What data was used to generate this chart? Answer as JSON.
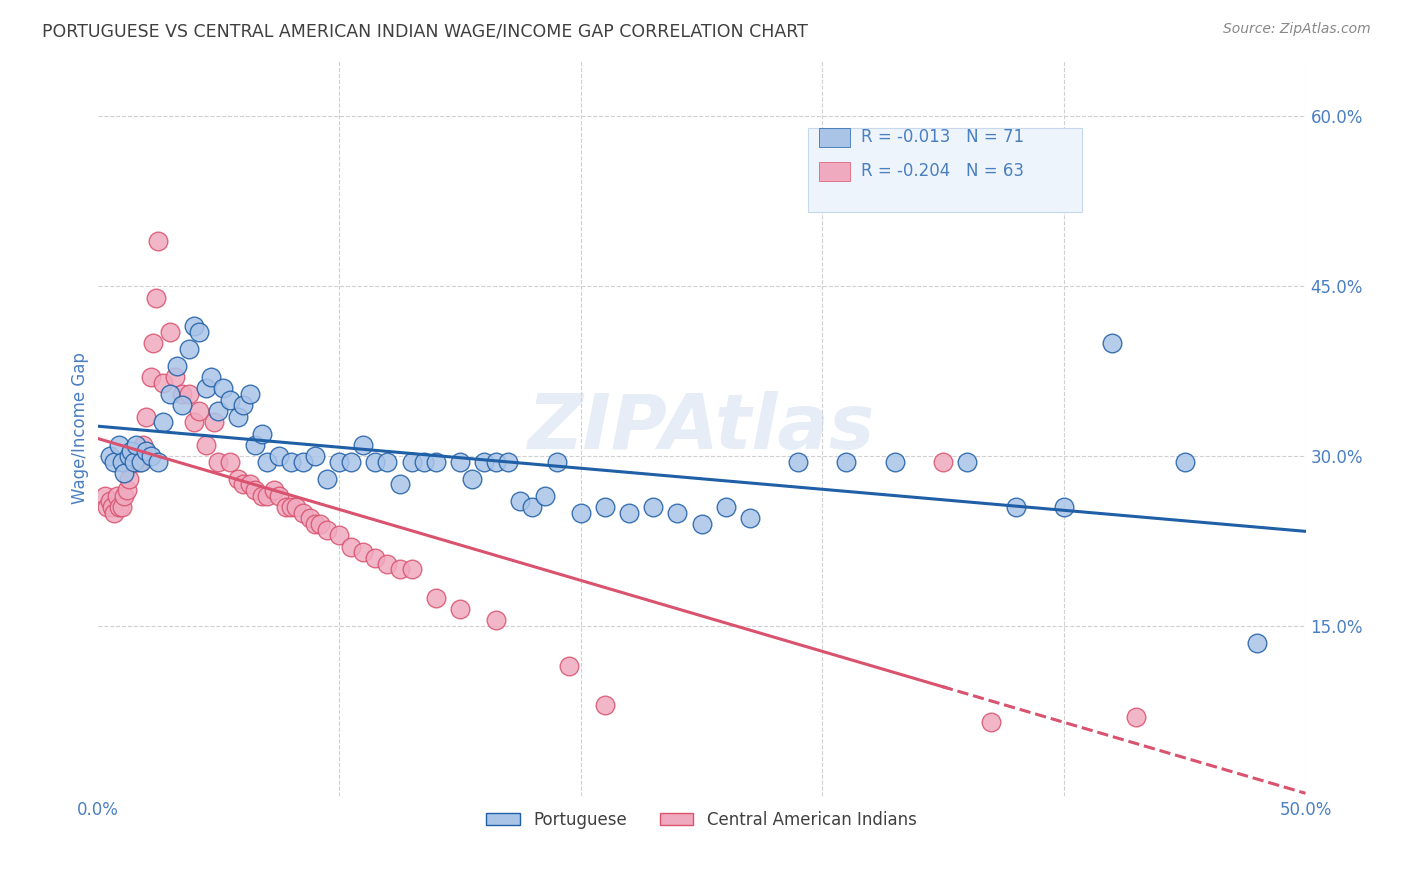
{
  "title": "PORTUGUESE VS CENTRAL AMERICAN INDIAN WAGE/INCOME GAP CORRELATION CHART",
  "source": "Source: ZipAtlas.com",
  "ylabel": "Wage/Income Gap",
  "xlim": [
    0.0,
    0.5
  ],
  "ylim": [
    0.0,
    0.65
  ],
  "yticks": [
    0.15,
    0.3,
    0.45,
    0.6
  ],
  "ytick_labels": [
    "15.0%",
    "30.0%",
    "45.0%",
    "60.0%"
  ],
  "xticks": [
    0.0,
    0.1,
    0.2,
    0.3,
    0.4,
    0.5
  ],
  "xtick_labels": [
    "0.0%",
    "",
    "",
    "",
    "",
    "50.0%"
  ],
  "legend_entries": [
    {
      "label": "Portuguese",
      "color": "#aac4e8",
      "R": "-0.013",
      "N": "71"
    },
    {
      "label": "Central American Indians",
      "color": "#f0aac0",
      "R": "-0.204",
      "N": "63"
    }
  ],
  "blue_scatter": [
    [
      0.005,
      0.3
    ],
    [
      0.007,
      0.295
    ],
    [
      0.009,
      0.31
    ],
    [
      0.01,
      0.295
    ],
    [
      0.011,
      0.285
    ],
    [
      0.013,
      0.3
    ],
    [
      0.014,
      0.305
    ],
    [
      0.015,
      0.295
    ],
    [
      0.016,
      0.31
    ],
    [
      0.018,
      0.295
    ],
    [
      0.02,
      0.305
    ],
    [
      0.022,
      0.3
    ],
    [
      0.025,
      0.295
    ],
    [
      0.027,
      0.33
    ],
    [
      0.03,
      0.355
    ],
    [
      0.033,
      0.38
    ],
    [
      0.035,
      0.345
    ],
    [
      0.038,
      0.395
    ],
    [
      0.04,
      0.415
    ],
    [
      0.042,
      0.41
    ],
    [
      0.045,
      0.36
    ],
    [
      0.047,
      0.37
    ],
    [
      0.05,
      0.34
    ],
    [
      0.052,
      0.36
    ],
    [
      0.055,
      0.35
    ],
    [
      0.058,
      0.335
    ],
    [
      0.06,
      0.345
    ],
    [
      0.063,
      0.355
    ],
    [
      0.065,
      0.31
    ],
    [
      0.068,
      0.32
    ],
    [
      0.07,
      0.295
    ],
    [
      0.075,
      0.3
    ],
    [
      0.08,
      0.295
    ],
    [
      0.085,
      0.295
    ],
    [
      0.09,
      0.3
    ],
    [
      0.095,
      0.28
    ],
    [
      0.1,
      0.295
    ],
    [
      0.105,
      0.295
    ],
    [
      0.11,
      0.31
    ],
    [
      0.115,
      0.295
    ],
    [
      0.12,
      0.295
    ],
    [
      0.125,
      0.275
    ],
    [
      0.13,
      0.295
    ],
    [
      0.135,
      0.295
    ],
    [
      0.14,
      0.295
    ],
    [
      0.15,
      0.295
    ],
    [
      0.155,
      0.28
    ],
    [
      0.16,
      0.295
    ],
    [
      0.165,
      0.295
    ],
    [
      0.17,
      0.295
    ],
    [
      0.175,
      0.26
    ],
    [
      0.18,
      0.255
    ],
    [
      0.185,
      0.265
    ],
    [
      0.19,
      0.295
    ],
    [
      0.2,
      0.25
    ],
    [
      0.21,
      0.255
    ],
    [
      0.22,
      0.25
    ],
    [
      0.23,
      0.255
    ],
    [
      0.24,
      0.25
    ],
    [
      0.25,
      0.24
    ],
    [
      0.26,
      0.255
    ],
    [
      0.27,
      0.245
    ],
    [
      0.29,
      0.295
    ],
    [
      0.31,
      0.295
    ],
    [
      0.33,
      0.295
    ],
    [
      0.36,
      0.295
    ],
    [
      0.38,
      0.255
    ],
    [
      0.4,
      0.255
    ],
    [
      0.42,
      0.4
    ],
    [
      0.45,
      0.295
    ],
    [
      0.48,
      0.135
    ]
  ],
  "pink_scatter": [
    [
      0.003,
      0.265
    ],
    [
      0.004,
      0.255
    ],
    [
      0.005,
      0.26
    ],
    [
      0.006,
      0.255
    ],
    [
      0.007,
      0.25
    ],
    [
      0.008,
      0.265
    ],
    [
      0.009,
      0.255
    ],
    [
      0.01,
      0.255
    ],
    [
      0.011,
      0.265
    ],
    [
      0.012,
      0.27
    ],
    [
      0.013,
      0.28
    ],
    [
      0.015,
      0.295
    ],
    [
      0.016,
      0.295
    ],
    [
      0.017,
      0.295
    ],
    [
      0.018,
      0.3
    ],
    [
      0.019,
      0.31
    ],
    [
      0.02,
      0.335
    ],
    [
      0.022,
      0.37
    ],
    [
      0.023,
      0.4
    ],
    [
      0.024,
      0.44
    ],
    [
      0.025,
      0.49
    ],
    [
      0.027,
      0.365
    ],
    [
      0.03,
      0.41
    ],
    [
      0.032,
      0.37
    ],
    [
      0.035,
      0.355
    ],
    [
      0.038,
      0.355
    ],
    [
      0.04,
      0.33
    ],
    [
      0.042,
      0.34
    ],
    [
      0.045,
      0.31
    ],
    [
      0.048,
      0.33
    ],
    [
      0.05,
      0.295
    ],
    [
      0.055,
      0.295
    ],
    [
      0.058,
      0.28
    ],
    [
      0.06,
      0.275
    ],
    [
      0.063,
      0.275
    ],
    [
      0.065,
      0.27
    ],
    [
      0.068,
      0.265
    ],
    [
      0.07,
      0.265
    ],
    [
      0.073,
      0.27
    ],
    [
      0.075,
      0.265
    ],
    [
      0.078,
      0.255
    ],
    [
      0.08,
      0.255
    ],
    [
      0.082,
      0.255
    ],
    [
      0.085,
      0.25
    ],
    [
      0.088,
      0.245
    ],
    [
      0.09,
      0.24
    ],
    [
      0.092,
      0.24
    ],
    [
      0.095,
      0.235
    ],
    [
      0.1,
      0.23
    ],
    [
      0.105,
      0.22
    ],
    [
      0.11,
      0.215
    ],
    [
      0.115,
      0.21
    ],
    [
      0.12,
      0.205
    ],
    [
      0.125,
      0.2
    ],
    [
      0.13,
      0.2
    ],
    [
      0.14,
      0.175
    ],
    [
      0.15,
      0.165
    ],
    [
      0.165,
      0.155
    ],
    [
      0.195,
      0.115
    ],
    [
      0.21,
      0.08
    ],
    [
      0.35,
      0.295
    ],
    [
      0.37,
      0.065
    ],
    [
      0.43,
      0.07
    ]
  ],
  "blue_line_color": "#1f5fa6",
  "pink_line_color": "#d9526e",
  "blue_scatter_color": "#aac4e8",
  "pink_scatter_color": "#f0aac0",
  "pink_line_solid_end": 0.35,
  "watermark": "ZIPAtlas",
  "background_color": "#ffffff",
  "grid_color": "#d0d0d0",
  "title_color": "#404040",
  "axis_color": "#4a7fc1",
  "legend_bg": "#eef4fb",
  "legend_border": "#c8d8ec"
}
